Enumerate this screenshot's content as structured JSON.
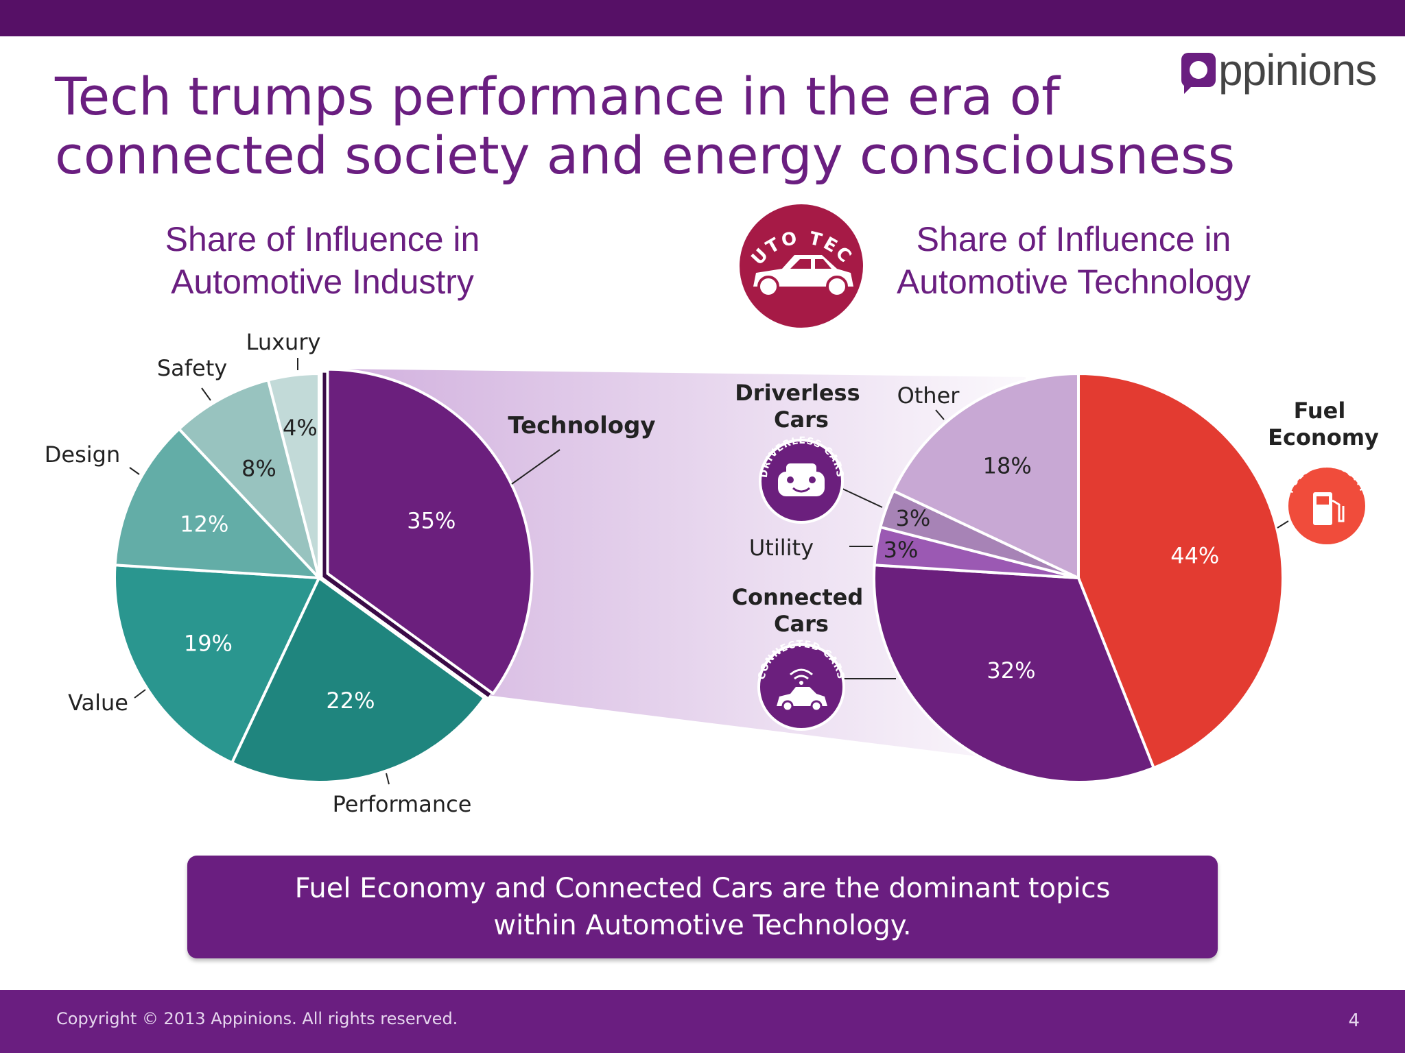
{
  "slide": {
    "title_line1": "Tech trumps performance in the era of",
    "title_line2": "connected society and energy consciousness",
    "logo_text": "ppinions",
    "callout_line1": "Fuel Economy and Connected Cars are the dominant topics",
    "callout_line2": "within Automotive Technology.",
    "copyright": "Copyright © 2013 Appinions. All rights reserved.",
    "page_number": "4",
    "badge_auto_tech": "AUTO TECH",
    "badge_driverless": "DRIVERLESS CARS",
    "badge_connected": "CONNECTED CARS",
    "badge_fuel": "FUEL ECONOMY"
  },
  "colors": {
    "header": "#561066",
    "accent": "#6a1e80",
    "technology": "#6b1f7d",
    "fuel_economy": "#e33b31",
    "badge_auto_tech": "#a61a46"
  },
  "chart_data": [
    {
      "type": "pie",
      "title": "Share of Influence in Automotive Industry",
      "title_line1": "Share of Influence in",
      "title_line2": "Automotive Industry",
      "slices": [
        {
          "label": "Technology",
          "value": 35,
          "value_label": "35%",
          "color": "#6b1f7d",
          "exploded": true
        },
        {
          "label": "Performance",
          "value": 22,
          "value_label": "22%",
          "color": "#1f857e"
        },
        {
          "label": "Value",
          "value": 19,
          "value_label": "19%",
          "color": "#2a968f"
        },
        {
          "label": "Design",
          "value": 12,
          "value_label": "12%",
          "color": "#63ada7"
        },
        {
          "label": "Safety",
          "value": 8,
          "value_label": "8%",
          "color": "#98c3bf"
        },
        {
          "label": "Luxury",
          "value": 4,
          "value_label": "4%",
          "color": "#c2dad8"
        }
      ]
    },
    {
      "type": "pie",
      "title": "Share of Influence in Automotive Technology",
      "title_line1": "Share of Influence in",
      "title_line2": "Automotive Technology",
      "slices": [
        {
          "label": "Fuel Economy",
          "value": 44,
          "value_label": "44%",
          "color": "#e33b31"
        },
        {
          "label": "Connected Cars",
          "value": 32,
          "value_label": "32%",
          "color": "#6b1f7d"
        },
        {
          "label": "Utility",
          "value": 3,
          "value_label": "3%",
          "color": "#9b59b3"
        },
        {
          "label": "Driverless Cars",
          "value": 3,
          "value_label": "3%",
          "color": "#a783b6"
        },
        {
          "label": "Other",
          "value": 18,
          "value_label": "18%",
          "color": "#c8a8d4"
        }
      ]
    }
  ]
}
